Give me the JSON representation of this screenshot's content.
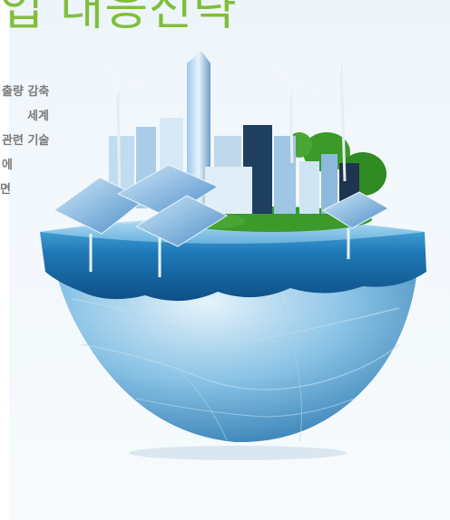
{
  "headline": "업 대응전략",
  "body_lines": [
    "출량 감축",
    "세계",
    "관련 기술",
    "에",
    "",
    "면"
  ],
  "colors": {
    "headline_green": "#7fbf3a",
    "panel_bg": "#eef5fa",
    "water_blue": "#1f79b7",
    "globe_blue": "#5aa8d8",
    "foliage_green": "#3b9a2a"
  }
}
